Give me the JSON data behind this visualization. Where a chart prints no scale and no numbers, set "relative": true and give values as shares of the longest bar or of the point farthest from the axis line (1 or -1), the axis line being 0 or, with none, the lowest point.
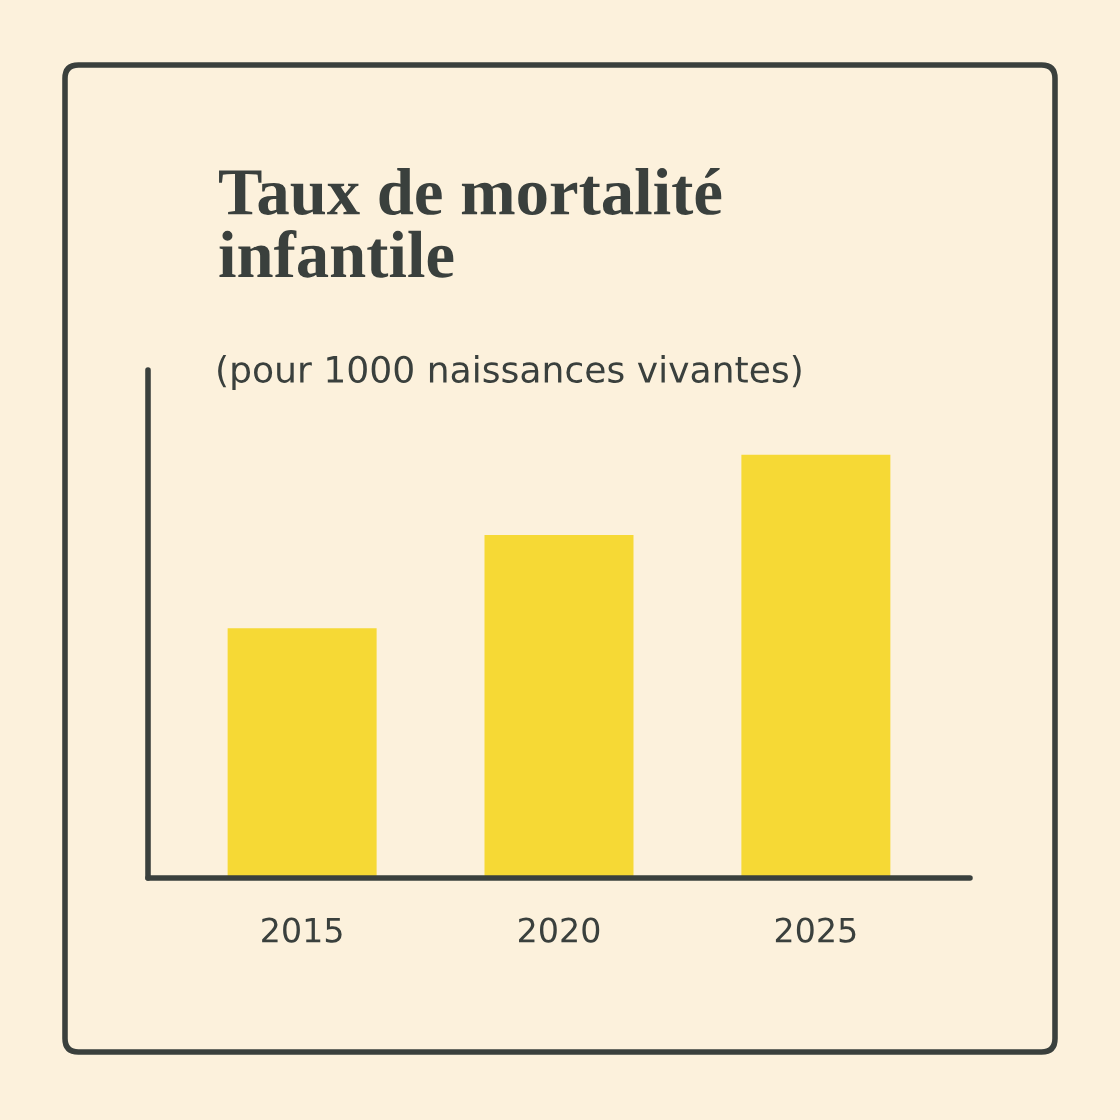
{
  "chart_data": {
    "type": "bar",
    "title": "Taux de mortalité\ninfantile",
    "subtitle": "(pour 1000 naissances vivantes)",
    "categories": [
      "2015",
      "2020",
      "2025"
    ],
    "values": [
      0.59,
      0.81,
      1
    ],
    "color": "#f6d935",
    "relative": true,
    "grid": false,
    "legend": false
  }
}
